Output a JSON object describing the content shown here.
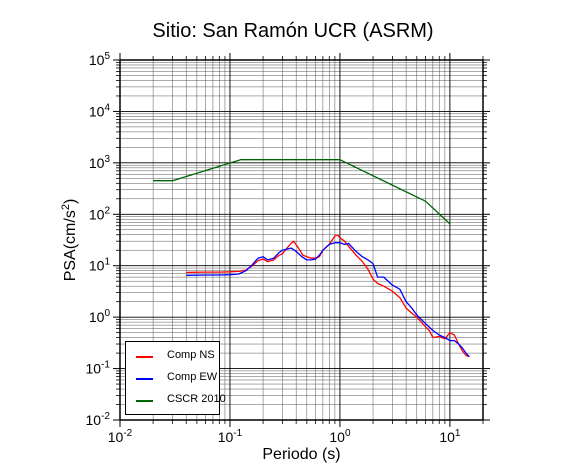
{
  "chart_data": {
    "type": "line",
    "title": "Sitio: San Ramón UCR (ASRM)",
    "xlabel": "Periodo (s)",
    "ylabel_main": "PSA(cm/s",
    "ylabel_sup": "2",
    "ylabel_tail": ")",
    "xscale": "log",
    "yscale": "log",
    "xlim": [
      0.01,
      20
    ],
    "ylim": [
      0.01,
      100000
    ],
    "grid": true,
    "legend_position": "bottom-left",
    "x_ticks": [
      {
        "base": "10",
        "exp": "-2"
      },
      {
        "base": "10",
        "exp": "-1"
      },
      {
        "text": "10",
        "sup": "0"
      },
      {
        "text": "10",
        "sup": "1"
      }
    ],
    "x_tick_values": [
      0.01,
      0.1,
      1,
      10
    ],
    "y_ticks": [
      {
        "base": "10",
        "exp": "-2",
        "value": 0.01
      },
      {
        "base": "10",
        "exp": "-1",
        "value": 0.1
      },
      {
        "base": "10",
        "exp": "0",
        "value": 1
      },
      {
        "base": "10",
        "exp": "1",
        "value": 10
      },
      {
        "base": "10",
        "exp": "2",
        "value": 100
      },
      {
        "base": "10",
        "exp": "3",
        "value": 1000
      },
      {
        "base": "10",
        "exp": "4",
        "value": 10000
      },
      {
        "base": "10",
        "exp": "5",
        "value": 100000
      }
    ],
    "series": [
      {
        "name": "Comp NS",
        "color": "#ff0000",
        "points": [
          [
            0.04,
            7.4
          ],
          [
            0.06,
            7.5
          ],
          [
            0.08,
            7.5
          ],
          [
            0.1,
            7.6
          ],
          [
            0.12,
            7.8
          ],
          [
            0.14,
            8.2
          ],
          [
            0.16,
            10
          ],
          [
            0.18,
            12.5
          ],
          [
            0.2,
            13.5
          ],
          [
            0.22,
            12
          ],
          [
            0.25,
            13
          ],
          [
            0.28,
            16
          ],
          [
            0.3,
            17
          ],
          [
            0.33,
            22
          ],
          [
            0.36,
            27
          ],
          [
            0.38,
            30
          ],
          [
            0.42,
            22
          ],
          [
            0.46,
            16
          ],
          [
            0.5,
            15
          ],
          [
            0.55,
            14
          ],
          [
            0.6,
            14
          ],
          [
            0.65,
            15
          ],
          [
            0.7,
            20
          ],
          [
            0.8,
            26
          ],
          [
            0.9,
            38
          ],
          [
            0.95,
            40
          ],
          [
            1.0,
            35
          ],
          [
            1.1,
            30
          ],
          [
            1.2,
            24
          ],
          [
            1.4,
            16
          ],
          [
            1.6,
            12
          ],
          [
            1.8,
            8.5
          ],
          [
            2.0,
            5.5
          ],
          [
            2.2,
            4.5
          ],
          [
            2.5,
            4.0
          ],
          [
            3.0,
            3.2
          ],
          [
            3.5,
            2.4
          ],
          [
            4.0,
            1.5
          ],
          [
            4.5,
            1.2
          ],
          [
            5.0,
            1.0
          ],
          [
            6.0,
            0.65
          ],
          [
            6.5,
            0.55
          ],
          [
            7.0,
            0.4
          ],
          [
            8.0,
            0.42
          ],
          [
            9.0,
            0.38
          ],
          [
            10.0,
            0.5
          ],
          [
            11.0,
            0.45
          ],
          [
            12.0,
            0.3
          ],
          [
            13.0,
            0.22
          ],
          [
            14.0,
            0.18
          ],
          [
            15.0,
            0.17
          ]
        ]
      },
      {
        "name": "Comp EW",
        "color": "#0000ff",
        "points": [
          [
            0.04,
            6.5
          ],
          [
            0.06,
            6.6
          ],
          [
            0.08,
            6.6
          ],
          [
            0.1,
            6.7
          ],
          [
            0.12,
            6.9
          ],
          [
            0.14,
            8
          ],
          [
            0.16,
            10.5
          ],
          [
            0.18,
            14
          ],
          [
            0.2,
            15
          ],
          [
            0.22,
            13
          ],
          [
            0.25,
            14
          ],
          [
            0.28,
            18
          ],
          [
            0.3,
            20
          ],
          [
            0.33,
            21
          ],
          [
            0.36,
            22
          ],
          [
            0.4,
            19
          ],
          [
            0.45,
            15
          ],
          [
            0.5,
            13
          ],
          [
            0.55,
            13
          ],
          [
            0.6,
            13.5
          ],
          [
            0.65,
            16
          ],
          [
            0.7,
            20
          ],
          [
            0.8,
            26
          ],
          [
            0.9,
            28
          ],
          [
            1.0,
            28
          ],
          [
            1.1,
            26
          ],
          [
            1.2,
            27
          ],
          [
            1.4,
            19
          ],
          [
            1.6,
            15
          ],
          [
            1.8,
            13
          ],
          [
            2.0,
            11
          ],
          [
            2.2,
            6
          ],
          [
            2.5,
            6
          ],
          [
            3.0,
            4.2
          ],
          [
            3.5,
            3.5
          ],
          [
            4.0,
            2.0
          ],
          [
            4.5,
            1.5
          ],
          [
            5.0,
            1.1
          ],
          [
            6.0,
            0.75
          ],
          [
            7.0,
            0.55
          ],
          [
            8.0,
            0.45
          ],
          [
            9.0,
            0.4
          ],
          [
            10.0,
            0.35
          ],
          [
            11.0,
            0.35
          ],
          [
            12.0,
            0.3
          ],
          [
            13.0,
            0.25
          ],
          [
            14.0,
            0.2
          ],
          [
            15.0,
            0.17
          ]
        ]
      },
      {
        "name": "CSCR 2010",
        "color": "#006400",
        "points": [
          [
            0.02,
            450
          ],
          [
            0.03,
            450
          ],
          [
            0.125,
            1150
          ],
          [
            1.0,
            1150
          ],
          [
            6.0,
            180
          ],
          [
            10.0,
            65
          ]
        ]
      }
    ]
  },
  "legend": [
    {
      "label": "Comp NS",
      "color": "#ff0000"
    },
    {
      "label": "Comp EW",
      "color": "#0000ff"
    },
    {
      "label": "CSCR 2010",
      "color": "#006400"
    }
  ]
}
